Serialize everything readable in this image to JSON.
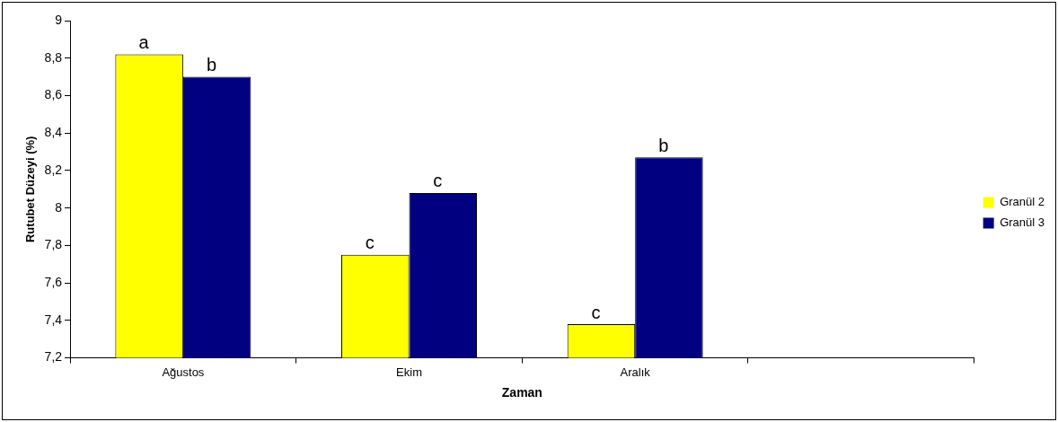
{
  "chart_data": {
    "type": "bar",
    "xlabel": "Zaman",
    "ylabel": "Rutubet Düzeyi (%)",
    "categories": [
      "Ağustos",
      "Ekim",
      "Aralık",
      null
    ],
    "series": [
      {
        "name": "Granül 2",
        "color": "#ffff00",
        "values": [
          8.82,
          7.75,
          7.38,
          null
        ],
        "value_labels": [
          "a",
          "c",
          "c",
          null
        ]
      },
      {
        "name": "Granül 3",
        "color": "#000080",
        "values": [
          8.7,
          8.08,
          8.27,
          null
        ],
        "value_labels": [
          "b",
          "c",
          "b",
          null
        ]
      }
    ],
    "ylim": [
      7.2,
      9
    ],
    "yticks": [
      {
        "value": 7.2,
        "label": "7,2"
      },
      {
        "value": 7.4,
        "label": "7,4"
      },
      {
        "value": 7.6,
        "label": "7,6"
      },
      {
        "value": 7.8,
        "label": "7,8"
      },
      {
        "value": 8,
        "label": "8"
      },
      {
        "value": 8.2,
        "label": "8,2"
      },
      {
        "value": 8.4,
        "label": "8,4"
      },
      {
        "value": 8.6,
        "label": "8,6"
      },
      {
        "value": 8.8,
        "label": "8,8"
      },
      {
        "value": 9,
        "label": "9"
      }
    ],
    "grid": false,
    "legend": "right"
  }
}
